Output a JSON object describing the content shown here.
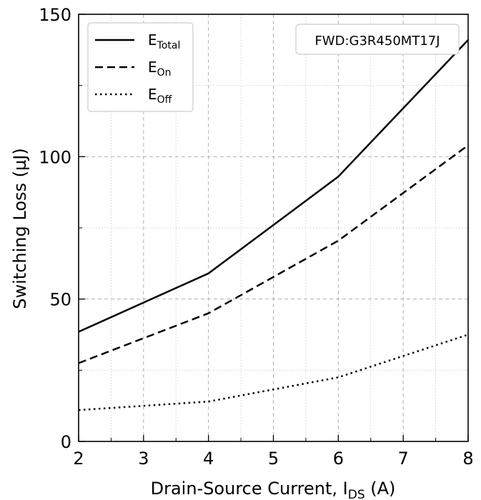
{
  "chart_data": {
    "type": "line",
    "title": "",
    "xlabel_main": "Drain-Source Current, I",
    "xlabel_sub": "DS",
    "xlabel_unit": " (A)",
    "ylabel": "Switching Loss (µJ)",
    "xlim": [
      2,
      8
    ],
    "ylim": [
      0,
      150
    ],
    "xticks": [
      "2",
      "3",
      "4",
      "5",
      "6",
      "7",
      "8"
    ],
    "yticks": [
      "0",
      "50",
      "100",
      "150"
    ],
    "grid": true,
    "legend_position": "top-left",
    "annotation": "FWD:G3R450MT17J",
    "x": [
      2,
      4,
      6,
      8
    ],
    "series": [
      {
        "name_main": "E",
        "name_sub": "Total",
        "style": "solid",
        "values": [
          38.5,
          59,
          93,
          141
        ]
      },
      {
        "name_main": "E",
        "name_sub": "On",
        "style": "dashed",
        "values": [
          27.5,
          45,
          70.5,
          104
        ]
      },
      {
        "name_main": "E",
        "name_sub": "Off",
        "style": "dotted",
        "values": [
          11,
          14,
          22.5,
          37.5
        ]
      }
    ]
  }
}
